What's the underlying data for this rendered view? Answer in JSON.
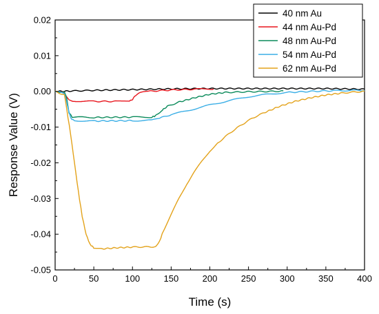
{
  "chart_data": {
    "type": "line",
    "title": "",
    "xlabel": "Time (s)",
    "ylabel": "Response Value (V)",
    "xlim": [
      0,
      400
    ],
    "ylim": [
      -0.05,
      0.02
    ],
    "xticks": [
      0,
      50,
      100,
      150,
      200,
      250,
      300,
      350,
      400
    ],
    "xtick_labels": [
      "0",
      "50",
      "100",
      "150",
      "200",
      "250",
      "300",
      "350",
      "400"
    ],
    "yticks": [
      -0.05,
      -0.04,
      -0.03,
      -0.02,
      -0.01,
      0.0,
      0.01,
      0.02
    ],
    "ytick_labels": [
      "-0.05",
      "-0.04",
      "-0.03",
      "-0.02",
      "-0.01",
      "0.00",
      "0.01",
      "0.02"
    ],
    "grid": false,
    "legend_position": "top-right",
    "series": [
      {
        "name": "40 nm Au",
        "color": "#000000",
        "points": [
          [
            0,
            0.0
          ],
          [
            20,
            0.0001
          ],
          [
            50,
            0.0003
          ],
          [
            100,
            0.0005
          ],
          [
            150,
            0.0007
          ],
          [
            200,
            0.0008
          ],
          [
            250,
            0.0008
          ],
          [
            300,
            0.0008
          ],
          [
            350,
            0.0008
          ],
          [
            400,
            0.0006
          ]
        ]
      },
      {
        "name": "44 nm Au-Pd",
        "color": "#e8141c",
        "points": [
          [
            0,
            0.0
          ],
          [
            10,
            0.0
          ],
          [
            15,
            -0.0015
          ],
          [
            18,
            -0.0025
          ],
          [
            25,
            -0.0027
          ],
          [
            50,
            -0.0028
          ],
          [
            80,
            -0.0028
          ],
          [
            96,
            -0.0028
          ],
          [
            100,
            -0.0022
          ],
          [
            104,
            -0.0012
          ],
          [
            110,
            -0.0004
          ],
          [
            120,
            0.0
          ],
          [
            150,
            0.0004
          ],
          [
            180,
            0.0006
          ],
          [
            205,
            0.0007
          ]
        ]
      },
      {
        "name": "48 nm Au-Pd",
        "color": "#0a8a5a",
        "points": [
          [
            0,
            0.0
          ],
          [
            12,
            -0.0003
          ],
          [
            15,
            -0.002
          ],
          [
            18,
            -0.006
          ],
          [
            22,
            -0.0072
          ],
          [
            50,
            -0.0073
          ],
          [
            100,
            -0.0072
          ],
          [
            125,
            -0.0072
          ],
          [
            130,
            -0.0068
          ],
          [
            137,
            -0.0055
          ],
          [
            145,
            -0.0042
          ],
          [
            160,
            -0.003
          ],
          [
            180,
            -0.0018
          ],
          [
            200,
            -0.0008
          ],
          [
            220,
            -0.0003
          ],
          [
            250,
            -0.0001
          ],
          [
            280,
            0.0
          ],
          [
            295,
            0.0001
          ]
        ]
      },
      {
        "name": "54 nm Au-Pd",
        "color": "#3aaee6",
        "points": [
          [
            0,
            0.0
          ],
          [
            12,
            -0.0005
          ],
          [
            16,
            -0.004
          ],
          [
            20,
            -0.0075
          ],
          [
            25,
            -0.0082
          ],
          [
            50,
            -0.0083
          ],
          [
            100,
            -0.0082
          ],
          [
            125,
            -0.0081
          ],
          [
            135,
            -0.0075
          ],
          [
            150,
            -0.0065
          ],
          [
            175,
            -0.0052
          ],
          [
            200,
            -0.0038
          ],
          [
            225,
            -0.0026
          ],
          [
            250,
            -0.0015
          ],
          [
            275,
            -0.0008
          ],
          [
            300,
            -0.0003
          ],
          [
            330,
            0.0
          ],
          [
            360,
            0.0002
          ],
          [
            400,
            0.0003
          ]
        ]
      },
      {
        "name": "62 nm Au-Pd",
        "color": "#e3a21a",
        "points": [
          [
            0,
            0.0
          ],
          [
            12,
            -0.001
          ],
          [
            15,
            -0.005
          ],
          [
            20,
            -0.012
          ],
          [
            25,
            -0.02
          ],
          [
            30,
            -0.028
          ],
          [
            35,
            -0.035
          ],
          [
            40,
            -0.04
          ],
          [
            45,
            -0.0428
          ],
          [
            50,
            -0.0438
          ],
          [
            60,
            -0.0441
          ],
          [
            80,
            -0.0438
          ],
          [
            100,
            -0.0436
          ],
          [
            130,
            -0.0435
          ],
          [
            135,
            -0.042
          ],
          [
            140,
            -0.039
          ],
          [
            150,
            -0.0345
          ],
          [
            160,
            -0.03
          ],
          [
            170,
            -0.026
          ],
          [
            180,
            -0.0225
          ],
          [
            190,
            -0.0195
          ],
          [
            200,
            -0.0167
          ],
          [
            210,
            -0.0145
          ],
          [
            225,
            -0.0118
          ],
          [
            240,
            -0.0095
          ],
          [
            255,
            -0.0075
          ],
          [
            270,
            -0.006
          ],
          [
            290,
            -0.0042
          ],
          [
            310,
            -0.0028
          ],
          [
            330,
            -0.0018
          ],
          [
            350,
            -0.001
          ],
          [
            370,
            -0.0005
          ],
          [
            385,
            -0.0002
          ],
          [
            400,
            0.0
          ]
        ]
      }
    ]
  }
}
